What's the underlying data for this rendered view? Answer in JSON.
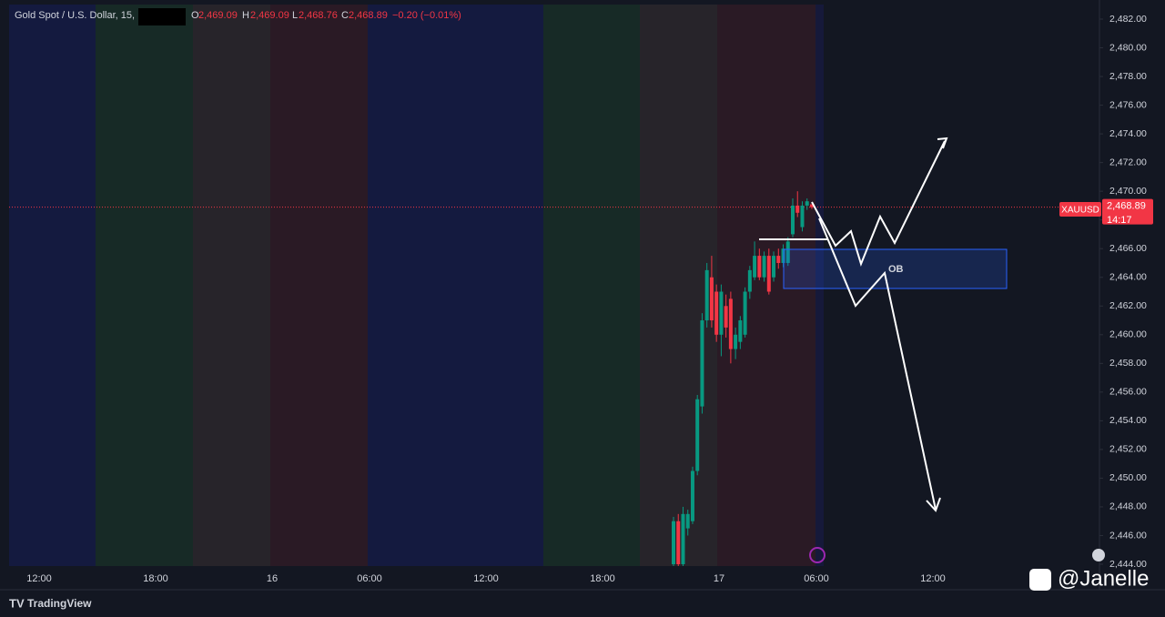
{
  "header": {
    "symbol": "Gold Spot / U.S. Dollar, 15,",
    "o_label": "O",
    "open": "2,469.09",
    "h_label": "H",
    "high": "2,469.09",
    "l_label": "L",
    "low": "2,468.76",
    "c_label": "C",
    "close": "2,468.89",
    "change": "−0.20 (−0.01%)"
  },
  "price_axis": {
    "range": [
      2444,
      2482
    ],
    "ticks": [
      {
        "value": 2444,
        "label": "2,444.00"
      },
      {
        "value": 2446,
        "label": "2,446.00"
      },
      {
        "value": 2448,
        "label": "2,448.00"
      },
      {
        "value": 2450,
        "label": "2,450.00"
      },
      {
        "value": 2452,
        "label": "2,452.00"
      },
      {
        "value": 2454,
        "label": "2,454.00"
      },
      {
        "value": 2456,
        "label": "2,456.00"
      },
      {
        "value": 2458,
        "label": "2,458.00"
      },
      {
        "value": 2460,
        "label": "2,460.00"
      },
      {
        "value": 2462,
        "label": "2,462.00"
      },
      {
        "value": 2464,
        "label": "2,464.00"
      },
      {
        "value": 2466,
        "label": "2,466.00"
      },
      {
        "value": 2468,
        "label": "2,468.00"
      },
      {
        "value": 2470,
        "label": "2,470.00"
      },
      {
        "value": 2472,
        "label": "2,472.00"
      },
      {
        "value": 2474,
        "label": "2,474.00"
      },
      {
        "value": 2476,
        "label": "2,476.00"
      },
      {
        "value": 2478,
        "label": "2,478.00"
      },
      {
        "value": 2480,
        "label": "2,480.00"
      },
      {
        "value": 2482,
        "label": "2,482.00"
      }
    ]
  },
  "time_axis": [
    "12:00",
    "18:00",
    "16",
    "06:00",
    "12:00",
    "18:00",
    "17",
    "06:00",
    "12:00"
  ],
  "price_badge": {
    "symbol": "XAUUSD",
    "value": 2468.89,
    "label": "2,468.89",
    "countdown": "14:17"
  },
  "candles": {
    "open": [
      2444,
      2447,
      2444,
      2446.5,
      2447,
      2450.5,
      2455,
      2461,
      2464,
      2463,
      2460,
      2462,
      2462.5,
      2459,
      2459.5,
      2460,
      2463,
      2464,
      2465.5,
      2464,
      2465.5,
      2464,
      2465.5,
      2465,
      2465,
      2467,
      2469,
      2467.5,
      2469,
      2469.09
    ],
    "high": [
      2447.3,
      2447.5,
      2448,
      2447.8,
      2450.8,
      2455.8,
      2461.5,
      2465,
      2465.5,
      2463.5,
      2463.5,
      2462.8,
      2463,
      2460.5,
      2461.3,
      2463.3,
      2464.8,
      2466.5,
      2466,
      2465.8,
      2466,
      2465.8,
      2466,
      2466.3,
      2466.8,
      2469.5,
      2470,
      2469.3,
      2469.5,
      2469.09
    ],
    "low": [
      2443.8,
      2443.8,
      2443.8,
      2446,
      2446.8,
      2450.2,
      2454.5,
      2460.5,
      2460.5,
      2459.5,
      2458.5,
      2459.8,
      2458,
      2458.3,
      2459,
      2459.8,
      2462.5,
      2463.8,
      2463.8,
      2463.7,
      2462.8,
      2463.7,
      2464.6,
      2464.7,
      2464.8,
      2466.8,
      2468.2,
      2467.2,
      2468.7,
      2468.76
    ],
    "close": [
      2447,
      2444,
      2447.5,
      2447.5,
      2450.5,
      2455.5,
      2461,
      2464.5,
      2461,
      2460,
      2463,
      2460.5,
      2459,
      2460,
      2461,
      2463,
      2464.5,
      2465.5,
      2464,
      2465.5,
      2463,
      2465.5,
      2465,
      2466,
      2466.5,
      2469,
      2468.5,
      2469,
      2469.3,
      2468.89
    ]
  },
  "annotation": "OB",
  "footer": "TradingView",
  "watermark": "@Janelle"
}
